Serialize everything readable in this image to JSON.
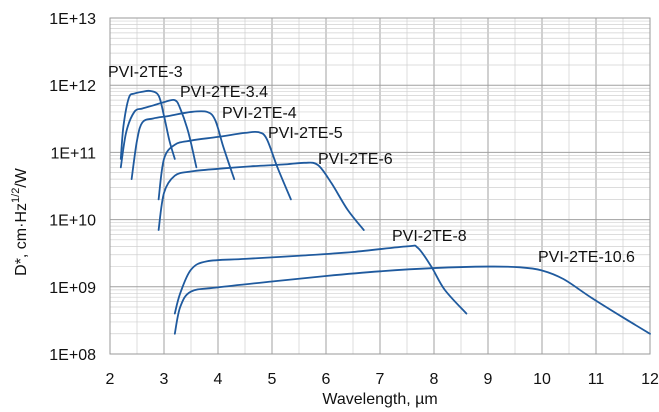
{
  "chart_data": {
    "type": "line",
    "title": "",
    "xlabel": "Wavelength, µm",
    "ylabel": "D*, cm·Hz",
    "ylabel_sup": "1/2",
    "ylabel_end": "/W",
    "xlim": [
      2,
      12
    ],
    "ylim": [
      100000000,
      10000000000000
    ],
    "yscale": "log",
    "grid": true,
    "x_ticks": [
      "2",
      "3",
      "4",
      "5",
      "6",
      "7",
      "8",
      "9",
      "10",
      "11",
      "12"
    ],
    "y_ticks": [
      "1E+08",
      "1E+09",
      "1E+10",
      "1E+11",
      "1E+12",
      "1E+13"
    ],
    "line_color": "#1f5a9e",
    "series": [
      {
        "name": "PVI-2TE-3",
        "x": [
          2.2,
          2.25,
          2.35,
          2.45,
          2.6,
          2.75,
          2.9,
          3.0,
          3.1,
          3.2
        ],
        "y": [
          80000000000,
          250000000000,
          650000000000,
          750000000000,
          800000000000,
          820000000000,
          700000000000,
          350000000000,
          150000000000,
          80000000000
        ]
      },
      {
        "name": "PVI-2TE-3.4",
        "x": [
          2.2,
          2.3,
          2.45,
          2.6,
          2.8,
          3.0,
          3.2,
          3.3,
          3.45,
          3.6
        ],
        "y": [
          60000000000,
          200000000000,
          400000000000,
          450000000000,
          500000000000,
          560000000000,
          600000000000,
          450000000000,
          200000000000,
          60000000000
        ]
      },
      {
        "name": "PVI-2TE-4",
        "x": [
          2.4,
          2.5,
          2.6,
          2.8,
          3.1,
          3.5,
          3.8,
          3.95,
          4.1,
          4.3
        ],
        "y": [
          40000000000,
          150000000000,
          280000000000,
          320000000000,
          350000000000,
          400000000000,
          400000000000,
          300000000000,
          120000000000,
          40000000000
        ]
      },
      {
        "name": "PVI-2TE-5",
        "x": [
          2.9,
          3.0,
          3.2,
          3.5,
          4.0,
          4.5,
          4.75,
          4.9,
          5.1,
          5.35
        ],
        "y": [
          20000000000,
          80000000000,
          130000000000,
          150000000000,
          170000000000,
          195000000000,
          200000000000,
          160000000000,
          60000000000,
          20000000000
        ]
      },
      {
        "name": "PVI-2TE-6",
        "x": [
          2.9,
          3.0,
          3.2,
          3.5,
          4.0,
          4.6,
          5.2,
          5.6,
          5.85,
          6.1,
          6.4,
          6.7
        ],
        "y": [
          7000000000,
          25000000000,
          45000000000,
          52000000000,
          57000000000,
          62000000000,
          66000000000,
          70000000000,
          65000000000,
          35000000000,
          14000000000,
          7000000000
        ]
      },
      {
        "name": "PVI-2TE-8",
        "x": [
          3.2,
          3.3,
          3.5,
          3.8,
          4.5,
          5.5,
          6.5,
          7.5,
          7.7,
          7.95,
          8.2,
          8.6
        ],
        "y": [
          400000000,
          800000000,
          1800000000,
          2400000000,
          2600000000,
          2900000000,
          3300000000,
          4000000000,
          3800000000,
          2000000000,
          900000000,
          400000000
        ]
      },
      {
        "name": "PVI-2TE-10.6",
        "x": [
          3.2,
          3.3,
          3.5,
          4.0,
          5.0,
          6.0,
          7.0,
          8.0,
          9.0,
          9.6,
          10.0,
          10.4,
          10.9,
          11.5,
          12.0
        ],
        "y": [
          200000000,
          500000000,
          850000000,
          980000000,
          1200000000,
          1450000000,
          1700000000,
          1900000000,
          2000000000,
          1950000000,
          1750000000,
          1300000000,
          700000000,
          350000000,
          200000000
        ]
      }
    ]
  }
}
